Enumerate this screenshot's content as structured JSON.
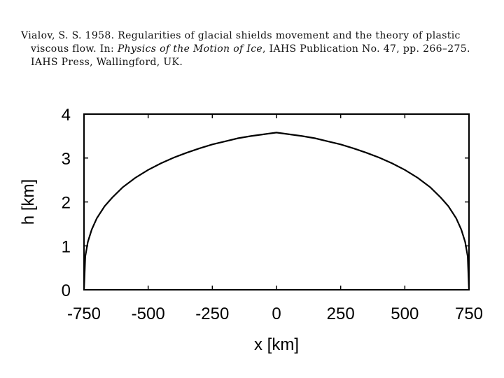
{
  "citation": {
    "line1": "Vialov, S. S. 1958.  Regularities of glacial shields movement and the theory of plastic",
    "line2_a": "viscous flow.  In: ",
    "line2_title": "Physics of the Motion of Ice",
    "line2_b": ", IAHS Publication No. 47, pp. 266–275.",
    "line3": "IAHS Press, Wallingford, UK."
  },
  "chart_data": {
    "type": "line",
    "title": "",
    "xlabel": "x [km]",
    "ylabel": "h [km]",
    "xlim": [
      -750,
      750
    ],
    "ylim": [
      0,
      4
    ],
    "xticks": [
      -750,
      -500,
      -250,
      0,
      250,
      500,
      750
    ],
    "yticks": [
      0,
      1,
      2,
      3,
      4
    ],
    "grid": false,
    "legend": "none",
    "color": "#000000",
    "series": [
      {
        "x": [
          -750,
          -745,
          -735,
          -720,
          -700,
          -670,
          -640,
          -600,
          -550,
          -500,
          -450,
          -400,
          -350,
          -300,
          -250,
          -200,
          -150,
          -100,
          -50,
          0,
          50,
          100,
          150,
          200,
          250,
          300,
          350,
          400,
          450,
          500,
          550,
          600,
          640,
          670,
          700,
          720,
          735,
          745,
          750
        ],
        "y": [
          0,
          0.76,
          1.09,
          1.37,
          1.63,
          1.9,
          2.1,
          2.33,
          2.55,
          2.73,
          2.88,
          3.01,
          3.12,
          3.22,
          3.31,
          3.38,
          3.45,
          3.5,
          3.54,
          3.58,
          3.54,
          3.5,
          3.45,
          3.38,
          3.31,
          3.22,
          3.12,
          3.01,
          2.88,
          2.73,
          2.55,
          2.33,
          2.1,
          1.9,
          1.63,
          1.37,
          1.09,
          0.76,
          0
        ]
      }
    ]
  }
}
